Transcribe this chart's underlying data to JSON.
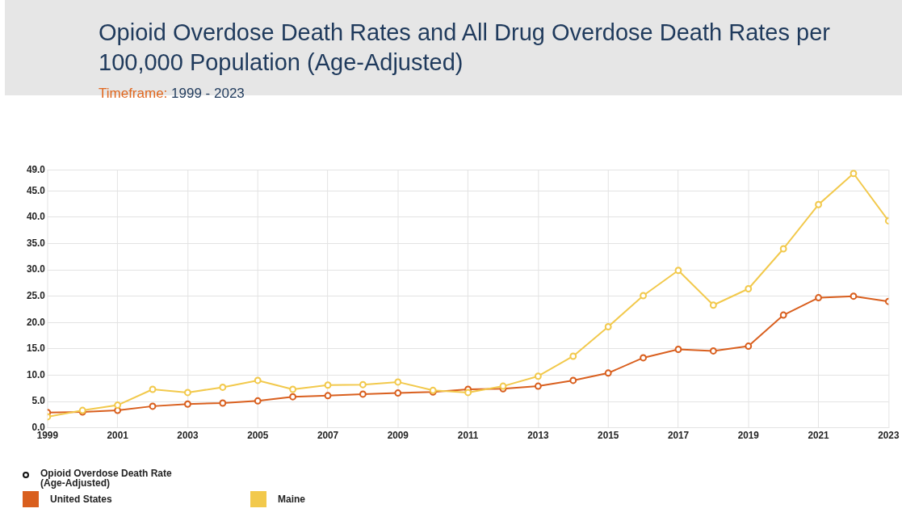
{
  "chart_data": {
    "type": "line",
    "title": "Opioid Overdose Death Rates and All Drug Overdose Death Rates per 100,000 Population (Age-Adjusted)",
    "subtitle": "Timeframe: 1999 - 2023",
    "legend_title": "Opioid Overdose Death Rate (Age-Adjusted)",
    "x": [
      1999,
      2000,
      2001,
      2002,
      2003,
      2004,
      2005,
      2006,
      2007,
      2008,
      2009,
      2010,
      2011,
      2012,
      2013,
      2014,
      2015,
      2016,
      2017,
      2018,
      2019,
      2020,
      2021,
      2022,
      2023
    ],
    "series": [
      {
        "name": "United States",
        "color": "#d95f1e",
        "values": [
          2.9,
          3.0,
          3.3,
          4.1,
          4.5,
          4.7,
          5.1,
          5.9,
          6.1,
          6.4,
          6.6,
          6.8,
          7.3,
          7.4,
          7.9,
          9.0,
          10.4,
          13.3,
          14.9,
          14.6,
          15.5,
          21.4,
          24.7,
          25.0,
          24.0
        ]
      },
      {
        "name": "Maine",
        "color": "#f2c94c",
        "values": [
          2.1,
          3.3,
          4.3,
          7.3,
          6.7,
          7.7,
          9.0,
          7.3,
          8.1,
          8.2,
          8.7,
          7.1,
          6.7,
          7.9,
          9.8,
          13.6,
          19.2,
          25.1,
          29.9,
          23.3,
          26.4,
          34.0,
          42.4,
          48.3,
          39.3
        ]
      }
    ],
    "xlim": [
      1999,
      2023
    ],
    "xticks": [
      1999,
      2001,
      2003,
      2005,
      2007,
      2009,
      2011,
      2013,
      2015,
      2017,
      2019,
      2021,
      2023
    ],
    "ylim": [
      0,
      49
    ],
    "yticks": [
      {
        "value": 0,
        "label": "0.0"
      },
      {
        "value": 5,
        "label": "5.0"
      },
      {
        "value": 10,
        "label": "10.0"
      },
      {
        "value": 15,
        "label": "15.0"
      },
      {
        "value": 20,
        "label": "20.0"
      },
      {
        "value": 25,
        "label": "25.0"
      },
      {
        "value": 30,
        "label": "30.0"
      },
      {
        "value": 35,
        "label": "35.0"
      },
      {
        "value": 40,
        "label": "40.0"
      },
      {
        "value": 45,
        "label": "45.0"
      },
      {
        "value": 49,
        "label": "49.0"
      }
    ],
    "grid": true,
    "legend": "bottom",
    "marker": "circle",
    "line_style": "solid"
  }
}
